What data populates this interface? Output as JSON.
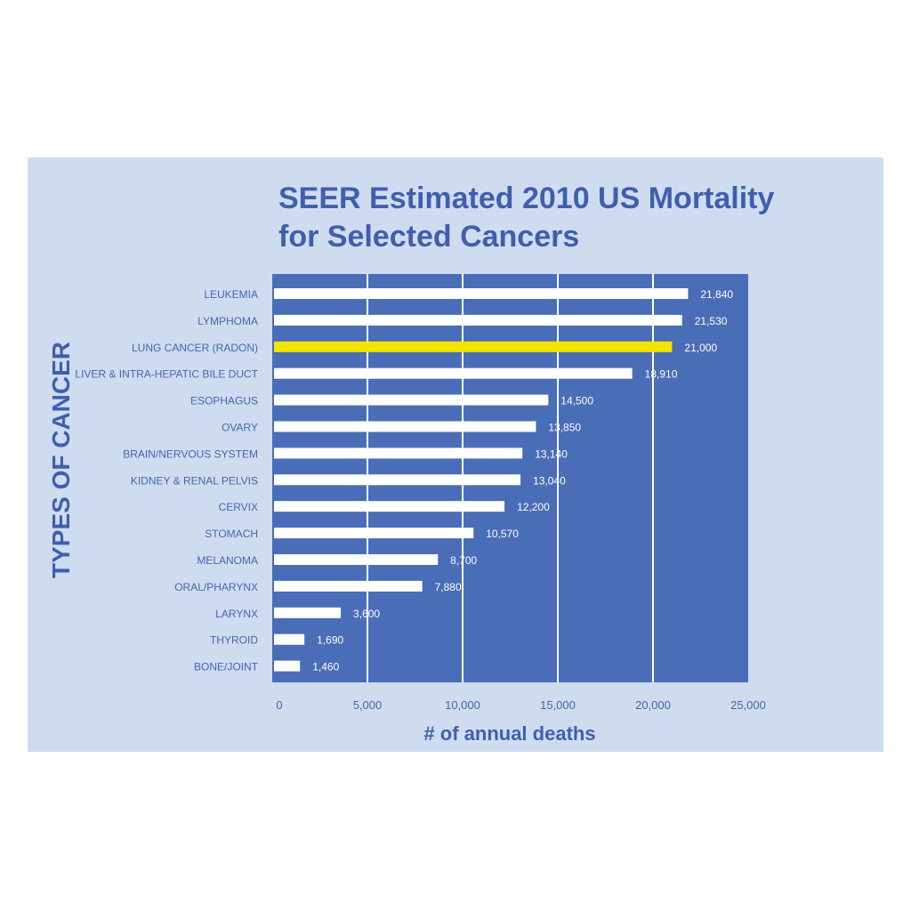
{
  "colors": {
    "panel_background": "#cfdcf0",
    "plot_background": "#4a6db8",
    "bar_default": "#ffffff",
    "bar_highlight": "#f2e600",
    "title_text": "#3f5fae",
    "label_text": "#4564b0",
    "value_label_on_plot": "#ffffff",
    "gridline": "#ffffff"
  },
  "chart_data": {
    "type": "bar",
    "orientation": "horizontal",
    "title_line1": "SEER Estimated 2010 US Mortality",
    "title_line2": "for Selected Cancers",
    "xlabel": "# of annual deaths",
    "ylabel": "TYPES OF CANCER",
    "xlim": [
      0,
      25000
    ],
    "xticks": [
      0,
      5000,
      10000,
      15000,
      20000,
      25000
    ],
    "xtick_labels": [
      "0",
      "5,000",
      "10,000",
      "15,000",
      "20,000",
      "25,000"
    ],
    "grid": "vertical",
    "categories": [
      "LEUKEMIA",
      "LYMPHOMA",
      "LUNG CANCER (RADON)",
      "LIVER & INTRA-HEPATIC BILE DUCT",
      "ESOPHAGUS",
      "OVARY",
      "BRAIN/NERVOUS SYSTEM",
      "KIDNEY & RENAL PELVIS",
      "CERVIX",
      "STOMACH",
      "MELANOMA",
      "ORAL/PHARYNX",
      "LARYNX",
      "THYROID",
      "BONE/JOINT"
    ],
    "values": [
      21840,
      21530,
      21000,
      18910,
      14500,
      13850,
      13140,
      13040,
      12200,
      10570,
      8700,
      7880,
      3600,
      1690,
      1460
    ],
    "value_labels": [
      "21,840",
      "21,530",
      "21,000",
      "18,910",
      "14,500",
      "13,850",
      "13,140",
      "13,040",
      "12,200",
      "10,570",
      "8,700",
      "7,880",
      "3,600",
      "1,690",
      "1,460"
    ],
    "highlighted_category": "LUNG CANCER (RADON)"
  }
}
